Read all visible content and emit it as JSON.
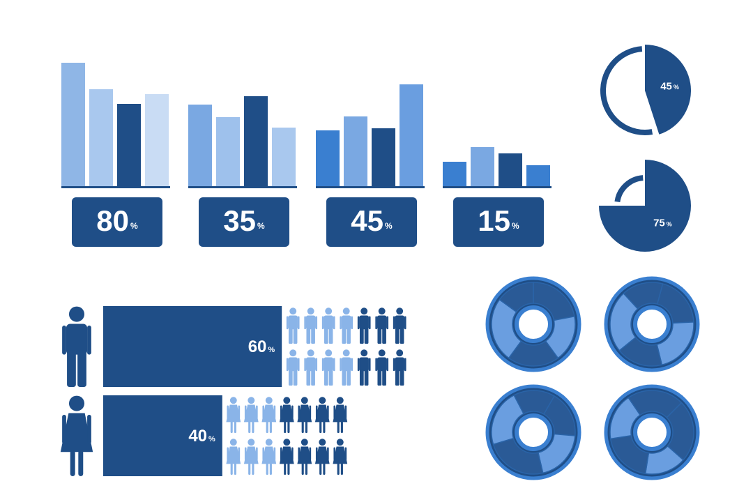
{
  "unit": "%",
  "bar_groups": [
    {
      "value": 80,
      "bars": [
        177,
        139,
        118,
        132
      ],
      "colors": [
        "#8fb6e6",
        "#a9c8ee",
        "#1f4e87",
        "#c9dcf4"
      ]
    },
    {
      "value": 35,
      "bars": [
        117,
        99,
        129,
        84
      ],
      "colors": [
        "#7aa8e2",
        "#9ec1ec",
        "#1f4e87",
        "#a9c8ee"
      ]
    },
    {
      "value": 45,
      "bars": [
        80,
        100,
        83,
        146
      ],
      "colors": [
        "#3a7fd0",
        "#7aa8e2",
        "#1f4e87",
        "#6a9ee0"
      ]
    },
    {
      "value": 15,
      "bars": [
        35,
        56,
        47,
        30
      ],
      "colors": [
        "#3a7fd0",
        "#7aa8e2",
        "#1f4e87",
        "#3a7fd0"
      ]
    }
  ],
  "bar_ylim": [
    0,
    180
  ],
  "pies": [
    {
      "value": 45
    },
    {
      "value": 75
    }
  ],
  "gender": [
    {
      "value": 60
    },
    {
      "value": 40
    }
  ],
  "donuts": [
    {
      "segments": [
        22,
        18,
        20,
        25,
        15
      ]
    },
    {
      "segments": [
        20,
        22,
        18,
        24,
        16
      ]
    },
    {
      "segments": [
        18,
        20,
        24,
        22,
        16
      ]
    },
    {
      "segments": [
        24,
        16,
        20,
        18,
        22
      ]
    }
  ]
}
